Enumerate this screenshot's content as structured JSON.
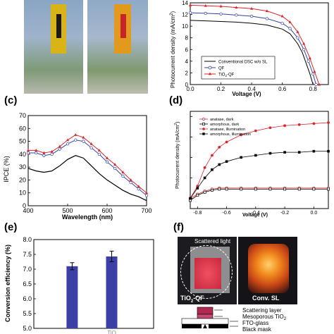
{
  "panels": {
    "b": {
      "ylabel": "Photocurrent density (mA/cm",
      "ylabel_sup": "2",
      "ylabel_close": ")",
      "xlabel": "Voltage (V)",
      "yticks": [
        "0",
        "2",
        "4",
        "6",
        "8",
        "10",
        "12",
        "14"
      ],
      "xticks": [
        "0.0",
        "0.2",
        "0.4",
        "0.6",
        "0.8"
      ],
      "legend": [
        "Conventional DSC w/o SL",
        "QF",
        "TiO",
        "-QF"
      ],
      "legend_sub": "2"
    },
    "c": {
      "label": "(c)",
      "ylabel": "IPCE (%)",
      "xlabel": "Wavelength (nm)",
      "yticks": [
        "0",
        "10",
        "20",
        "30",
        "40",
        "50",
        "60",
        "70"
      ],
      "xticks": [
        "400",
        "500",
        "600",
        "700"
      ]
    },
    "d": {
      "label": "(d)",
      "ylabel": "Photocurrent density (mA/cm",
      "ylabel_sup": "2",
      "ylabel_close": ")",
      "xlabel": "Voltage (V)",
      "xticks": [
        "-0.8",
        "-0.6",
        "-0.4",
        "-0.2",
        "0.0"
      ],
      "legend": [
        "anatase, dark",
        "amorphous, dark",
        "anatase, illumination",
        "amorphous, illumination"
      ]
    },
    "e": {
      "label": "(e)",
      "ylabel": "Conversion efficiency (%)",
      "yticks": [
        "5.0",
        "5.5",
        "6.0",
        "6.5",
        "7.0",
        "7.5",
        "8.0"
      ],
      "xticks_partial": "TiO"
    },
    "f": {
      "label": "(f)",
      "scattered": "Scattered light",
      "left_caption": "TiO",
      "left_caption_sub": "2",
      "left_caption_tail": "-QF",
      "right_caption": "Conv. SL",
      "layers": [
        "Scattering layer",
        "Mesoporous TiO",
        "FTO-glass",
        "Black mask"
      ],
      "layers_sub": "2"
    }
  },
  "colors": {
    "red": "#d8262a",
    "blue": "#3446a8",
    "bar": "#3d3fa8",
    "black": "#000000"
  },
  "chart_data": [
    {
      "panel": "b",
      "type": "line",
      "xlabel": "Voltage (V)",
      "ylabel": "Photocurrent density (mA/cm2)",
      "xlim": [
        0,
        0.9
      ],
      "ylim": [
        0,
        14
      ],
      "series": [
        {
          "name": "Conventional DSC w/o SL",
          "x": [
            0,
            0.1,
            0.2,
            0.3,
            0.4,
            0.5,
            0.6,
            0.65,
            0.7,
            0.73,
            0.76,
            0.78,
            0.8
          ],
          "y": [
            11.0,
            10.9,
            10.8,
            10.7,
            10.5,
            10.2,
            9.5,
            8.7,
            7.0,
            5.5,
            3.3,
            1.8,
            0
          ]
        },
        {
          "name": "QF",
          "x": [
            0,
            0.1,
            0.2,
            0.3,
            0.4,
            0.5,
            0.6,
            0.65,
            0.7,
            0.74,
            0.77,
            0.8,
            0.82
          ],
          "y": [
            12.3,
            12.2,
            12.1,
            11.9,
            11.7,
            11.3,
            10.5,
            9.6,
            8.0,
            6.0,
            4.0,
            1.8,
            0
          ]
        },
        {
          "name": "TiO2-QF",
          "x": [
            0,
            0.1,
            0.2,
            0.3,
            0.4,
            0.5,
            0.6,
            0.65,
            0.7,
            0.74,
            0.78,
            0.81,
            0.84
          ],
          "y": [
            13.6,
            13.5,
            13.4,
            13.2,
            13.0,
            12.6,
            11.7,
            10.7,
            9.0,
            7.0,
            4.5,
            2.2,
            0
          ]
        }
      ]
    },
    {
      "panel": "c",
      "type": "line",
      "xlabel": "Wavelength (nm)",
      "ylabel": "IPCE (%)",
      "xlim": [
        400,
        700
      ],
      "ylim": [
        0,
        70
      ],
      "series": [
        {
          "name": "",
          "x": [
            400,
            420,
            440,
            460,
            480,
            500,
            520,
            540,
            560,
            580,
            600,
            620,
            640,
            660,
            680,
            700
          ],
          "y": [
            29,
            27,
            26,
            27,
            31,
            36,
            39,
            37,
            31,
            25,
            20,
            16,
            12,
            9,
            7,
            4
          ]
        },
        {
          "name": "",
          "x": [
            400,
            420,
            440,
            460,
            480,
            500,
            520,
            540,
            560,
            580,
            600,
            620,
            640,
            660,
            680,
            700
          ],
          "y": [
            41,
            41,
            39,
            40,
            44,
            48,
            51,
            50,
            45,
            40,
            34,
            29,
            23,
            18,
            13,
            8
          ]
        },
        {
          "name": "",
          "x": [
            400,
            420,
            440,
            460,
            480,
            500,
            520,
            540,
            560,
            580,
            600,
            620,
            640,
            660,
            680,
            700
          ],
          "y": [
            43,
            43,
            41,
            42,
            46,
            51,
            55,
            53,
            48,
            43,
            37,
            32,
            26,
            20,
            15,
            10
          ]
        }
      ]
    },
    {
      "panel": "d",
      "type": "line",
      "xlabel": "Voltage (V)",
      "ylabel": "Photocurrent density (mA/cm2)",
      "xlim": [
        -0.85,
        0.1
      ],
      "ylim": [
        -0.1,
        0.85
      ],
      "series": [
        {
          "name": "anatase, dark",
          "x": [
            -0.85,
            -0.8,
            -0.75,
            -0.7,
            -0.65,
            -0.6,
            -0.5,
            -0.4,
            -0.3,
            -0.2,
            -0.1,
            0.0,
            0.1
          ],
          "y": [
            0.0,
            0.04,
            0.07,
            0.09,
            0.1,
            0.1,
            0.1,
            0.1,
            0.1,
            0.1,
            0.1,
            0.1,
            0.1
          ]
        },
        {
          "name": "amorphous, dark",
          "x": [
            -0.85,
            -0.8,
            -0.75,
            -0.7,
            -0.65,
            -0.6,
            -0.5,
            -0.4,
            -0.3,
            -0.2,
            -0.1,
            0.0,
            0.1
          ],
          "y": [
            -0.02,
            0.03,
            0.06,
            0.08,
            0.09,
            0.09,
            0.09,
            0.09,
            0.09,
            0.09,
            0.09,
            0.09,
            0.09
          ]
        },
        {
          "name": "anatase, illumination",
          "x": [
            -0.85,
            -0.8,
            -0.75,
            -0.7,
            -0.65,
            -0.6,
            -0.5,
            -0.4,
            -0.3,
            -0.2,
            -0.1,
            0.0,
            0.1
          ],
          "y": [
            0.0,
            0.12,
            0.3,
            0.42,
            0.5,
            0.55,
            0.62,
            0.66,
            0.69,
            0.71,
            0.72,
            0.73,
            0.74
          ]
        },
        {
          "name": "amorphous, illumination",
          "x": [
            -0.85,
            -0.8,
            -0.75,
            -0.7,
            -0.65,
            -0.6,
            -0.5,
            -0.4,
            -0.3,
            -0.2,
            -0.1,
            0.0,
            0.1
          ],
          "y": [
            0.0,
            0.1,
            0.2,
            0.28,
            0.33,
            0.36,
            0.4,
            0.42,
            0.44,
            0.45,
            0.45,
            0.46,
            0.46
          ]
        }
      ]
    },
    {
      "panel": "e",
      "type": "bar",
      "ylabel": "Conversion efficiency (%)",
      "ylim": [
        5.0,
        8.0
      ],
      "values": [
        7.1,
        7.43
      ],
      "errors": [
        0.12,
        0.18
      ]
    }
  ]
}
